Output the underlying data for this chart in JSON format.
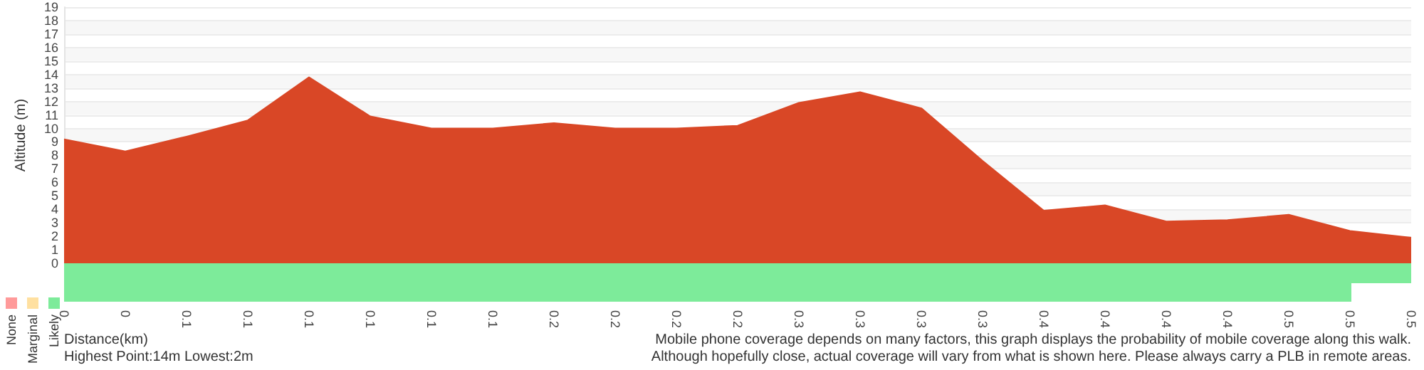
{
  "chart_data": [
    {
      "type": "area",
      "xlabel": "Distance(km)",
      "ylabel": "Altitude (m)",
      "categories": [
        "0",
        "0",
        "0.1",
        "0.1",
        "0.1",
        "0.1",
        "0.1",
        "0.1",
        "0.2",
        "0.2",
        "0.2",
        "0.2",
        "0.3",
        "0.3",
        "0.3",
        "0.3",
        "0.4",
        "0.4",
        "0.4",
        "0.4",
        "0.5",
        "0.5",
        "0.5"
      ],
      "series": [
        {
          "color": "#d94726",
          "values": [
            9.2,
            8.3,
            9.4,
            10.6,
            13.8,
            10.9,
            10.0,
            10.0,
            10.4,
            10.0,
            10.0,
            10.2,
            11.9,
            12.7,
            11.5,
            7.6,
            3.9,
            4.3,
            3.1,
            3.2,
            3.6,
            2.4,
            1.9
          ]
        }
      ],
      "ylim": [
        0,
        19
      ],
      "yticks": [
        0,
        1,
        2,
        3,
        4,
        5,
        6,
        7,
        8,
        9,
        10,
        11,
        12,
        13,
        14,
        15,
        16,
        17,
        18,
        19
      ],
      "grid": "y",
      "marker": "none",
      "annotations": [
        "Highest Point:14m Lowest:2m",
        "Mobile phone coverage depends on many factors, this graph displays the probability of mobile coverage along this walk.",
        "Although hopefully close, actual coverage will vary from what is shown here. Please always carry a PLB in remote areas."
      ]
    },
    {
      "type": "other",
      "annotations": [
        "None",
        "Marginal",
        "Likely"
      ]
    }
  ]
}
